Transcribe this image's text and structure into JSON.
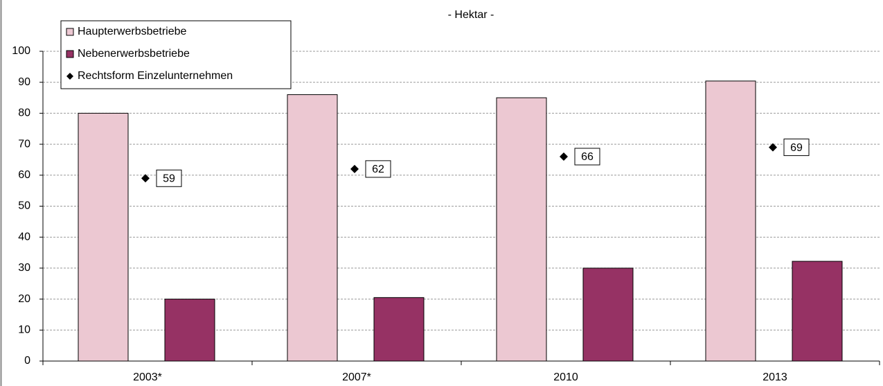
{
  "chart_data": {
    "type": "bar",
    "title": "- Hektar -",
    "categories": [
      "2003*",
      "2007*",
      "2010",
      "2013"
    ],
    "series": [
      {
        "name": "Haupterwerbsbetriebe",
        "color": "#ecc8d2",
        "values": [
          80,
          86,
          85,
          90.4
        ]
      },
      {
        "name": "Nebenerwerbsbetriebe",
        "color": "#963264",
        "values": [
          20,
          20.5,
          30,
          32.2
        ]
      },
      {
        "name": "Rechtsform Einzelunternehmen",
        "color": "#000000",
        "type": "scatter",
        "values": [
          59,
          62,
          66,
          69
        ]
      }
    ],
    "ylim": [
      0,
      100
    ],
    "yticks": [
      0,
      10,
      20,
      30,
      40,
      50,
      60,
      70,
      80,
      90,
      100
    ],
    "grid": true,
    "legend": "upper left"
  }
}
